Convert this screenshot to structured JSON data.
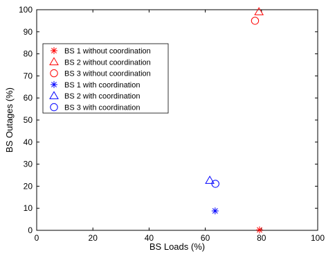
{
  "chart_data": {
    "type": "scatter",
    "xlabel": "BS Loads (%)",
    "ylabel": "BS Outages (%)",
    "xlim": [
      0,
      100
    ],
    "ylim": [
      0,
      100
    ],
    "xticks": [
      0,
      20,
      40,
      60,
      80,
      100
    ],
    "yticks": [
      0,
      10,
      20,
      30,
      40,
      50,
      60,
      70,
      80,
      90,
      100
    ],
    "grid": false,
    "legend_position": "top-left",
    "series": [
      {
        "name": "BS 1 without coordination",
        "marker": "asterisk",
        "color": "#ff0000",
        "points": [
          {
            "x": 79.3,
            "y": 0.2
          }
        ]
      },
      {
        "name": "BS 2 without coordination",
        "marker": "triangle",
        "color": "#ff0000",
        "points": [
          {
            "x": 79.1,
            "y": 99.0
          }
        ]
      },
      {
        "name": "BS 3 without coordination",
        "marker": "circle",
        "color": "#ff0000",
        "points": [
          {
            "x": 77.7,
            "y": 95.0
          }
        ]
      },
      {
        "name": "BS 1 with coordination",
        "marker": "asterisk",
        "color": "#0000ff",
        "points": [
          {
            "x": 63.5,
            "y": 8.8
          }
        ]
      },
      {
        "name": "BS 2 with coordination",
        "marker": "triangle",
        "color": "#0000ff",
        "points": [
          {
            "x": 61.6,
            "y": 22.6
          }
        ]
      },
      {
        "name": "BS 3 with coordination",
        "marker": "circle",
        "color": "#0000ff",
        "points": [
          {
            "x": 63.6,
            "y": 21.1
          }
        ]
      }
    ]
  }
}
